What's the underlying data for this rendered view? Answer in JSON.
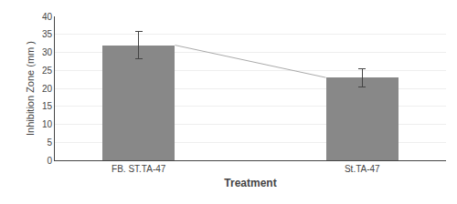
{
  "chart_data": {
    "type": "bar",
    "xlabel": "Treatment",
    "ylabel": "Inhibition Zone (mm )",
    "categories": [
      "FB. ST.TA-47",
      "St.TA-47"
    ],
    "series": [
      {
        "type": "bar",
        "color": "#888888",
        "values": [
          32.0,
          23.0
        ],
        "errors": [
          3.8,
          2.5
        ]
      },
      {
        "type": "line",
        "color": "#aaaaaa",
        "values": [
          32.0,
          23.0
        ]
      }
    ],
    "ylim": [
      0,
      40
    ],
    "yticks": [
      0,
      5,
      10,
      15,
      20,
      25,
      30,
      35,
      40
    ],
    "grid": true
  }
}
